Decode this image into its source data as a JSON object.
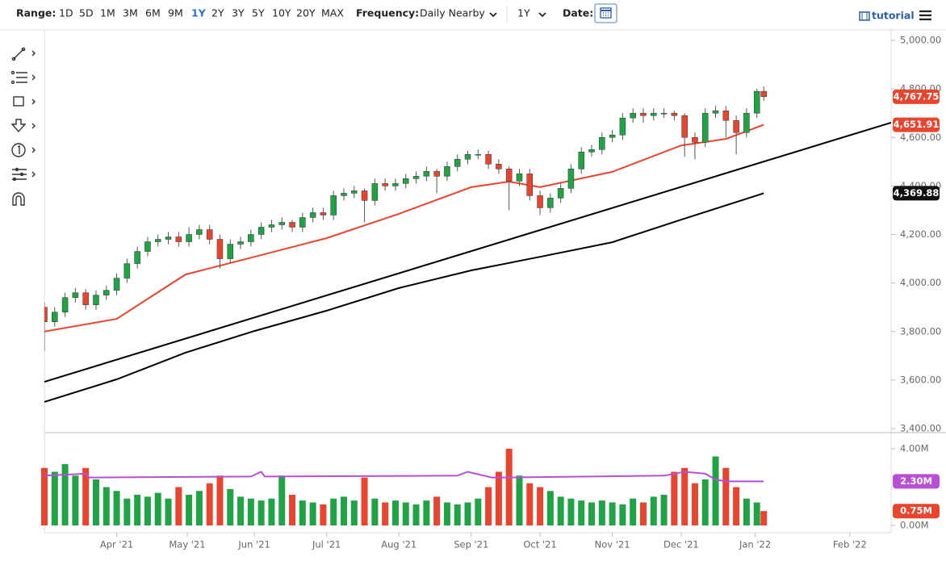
{
  "toolbar": {
    "range_label": "Range:",
    "ranges": [
      "1D",
      "5D",
      "1M",
      "3M",
      "6M",
      "9M",
      "1Y",
      "2Y",
      "3Y",
      "5Y",
      "10Y",
      "20Y",
      "MAX"
    ],
    "frequency_label": "Frequency:",
    "frequency": "Daily Nearby",
    "period": "1Y",
    "date_label": "Date:",
    "tutorial": "tutorial"
  },
  "chart_data": {
    "type": "candlestick",
    "xlim": [
      0,
      246
    ],
    "xticks": [
      {
        "value": 21,
        "label": "Apr '21"
      },
      {
        "value": 41.5,
        "label": "May '21"
      },
      {
        "value": 61,
        "label": "Jun '21"
      },
      {
        "value": 82,
        "label": "Jul '21"
      },
      {
        "value": 103,
        "label": "Aug '21"
      },
      {
        "value": 124,
        "label": "Sep '21"
      },
      {
        "value": 144,
        "label": "Oct '21"
      },
      {
        "value": 165,
        "label": "Nov '21"
      },
      {
        "value": 185,
        "label": "Dec '21"
      },
      {
        "value": 206.5,
        "label": "Jan '22"
      },
      {
        "value": 234,
        "label": "Feb '22"
      }
    ],
    "ylim": [
      3400,
      5000
    ],
    "yticks": [
      {
        "value": 3400,
        "label": "3,400.00"
      },
      {
        "value": 3600,
        "label": "3,600.00"
      },
      {
        "value": 3800,
        "label": "3,800.00"
      },
      {
        "value": 4000,
        "label": "4,000.00"
      },
      {
        "value": 4200,
        "label": "4,200.00"
      },
      {
        "value": 4400,
        "label": "4,400.00"
      },
      {
        "value": 4600,
        "label": "4,600.00"
      },
      {
        "value": 4800,
        "label": "4,800.00"
      },
      {
        "value": 5000,
        "label": "5,000.00"
      }
    ],
    "up_color": "#1fa344",
    "down_color": "#e8442e",
    "x": [
      0,
      3,
      6,
      9,
      12,
      15,
      18,
      21,
      24,
      27,
      30,
      33,
      36,
      39,
      42,
      45,
      48,
      51,
      54,
      57,
      60,
      63,
      66,
      69,
      72,
      75,
      78,
      81,
      84,
      87,
      90,
      93,
      96,
      99,
      102,
      105,
      108,
      111,
      114,
      117,
      120,
      123,
      126,
      129,
      132,
      135,
      138,
      141,
      144,
      147,
      150,
      153,
      156,
      159,
      162,
      165,
      168,
      171,
      174,
      177,
      180,
      183,
      186,
      189,
      192,
      195,
      198,
      201,
      204,
      207,
      209
    ],
    "candles": [
      [
        3900,
        3920,
        3720,
        3840
      ],
      [
        3840,
        3900,
        3820,
        3880
      ],
      [
        3880,
        3960,
        3860,
        3940
      ],
      [
        3940,
        3980,
        3920,
        3960
      ],
      [
        3960,
        3975,
        3890,
        3910
      ],
      [
        3910,
        3970,
        3890,
        3950
      ],
      [
        3950,
        3990,
        3930,
        3970
      ],
      [
        3970,
        4040,
        3950,
        4020
      ],
      [
        4020,
        4100,
        4000,
        4080
      ],
      [
        4080,
        4150,
        4060,
        4130
      ],
      [
        4130,
        4190,
        4110,
        4170
      ],
      [
        4170,
        4200,
        4150,
        4180
      ],
      [
        4180,
        4210,
        4160,
        4190
      ],
      [
        4190,
        4210,
        4150,
        4170
      ],
      [
        4170,
        4230,
        4150,
        4200
      ],
      [
        4200,
        4240,
        4180,
        4220
      ],
      [
        4220,
        4240,
        4160,
        4180
      ],
      [
        4180,
        4200,
        4060,
        4100
      ],
      [
        4100,
        4180,
        4080,
        4160
      ],
      [
        4160,
        4190,
        4140,
        4170
      ],
      [
        4170,
        4220,
        4150,
        4200
      ],
      [
        4200,
        4250,
        4180,
        4230
      ],
      [
        4230,
        4260,
        4210,
        4240
      ],
      [
        4240,
        4270,
        4220,
        4250
      ],
      [
        4250,
        4260,
        4210,
        4230
      ],
      [
        4230,
        4290,
        4210,
        4270
      ],
      [
        4270,
        4310,
        4250,
        4290
      ],
      [
        4290,
        4310,
        4260,
        4280
      ],
      [
        4280,
        4380,
        4260,
        4360
      ],
      [
        4360,
        4390,
        4340,
        4370
      ],
      [
        4370,
        4400,
        4350,
        4380
      ],
      [
        4380,
        4390,
        4250,
        4340
      ],
      [
        4340,
        4430,
        4320,
        4410
      ],
      [
        4410,
        4430,
        4380,
        4400
      ],
      [
        4400,
        4430,
        4380,
        4410
      ],
      [
        4410,
        4450,
        4390,
        4430
      ],
      [
        4430,
        4460,
        4410,
        4440
      ],
      [
        4440,
        4480,
        4420,
        4460
      ],
      [
        4460,
        4470,
        4370,
        4440
      ],
      [
        4440,
        4500,
        4420,
        4480
      ],
      [
        4480,
        4530,
        4460,
        4510
      ],
      [
        4510,
        4545,
        4490,
        4530
      ],
      [
        4530,
        4550,
        4510,
        4530
      ],
      [
        4530,
        4545,
        4470,
        4490
      ],
      [
        4490,
        4510,
        4450,
        4470
      ],
      [
        4470,
        4480,
        4300,
        4420
      ],
      [
        4420,
        4470,
        4400,
        4450
      ],
      [
        4450,
        4470,
        4340,
        4360
      ],
      [
        4360,
        4380,
        4280,
        4310
      ],
      [
        4310,
        4370,
        4290,
        4350
      ],
      [
        4350,
        4410,
        4330,
        4390
      ],
      [
        4390,
        4490,
        4370,
        4470
      ],
      [
        4470,
        4560,
        4450,
        4540
      ],
      [
        4540,
        4570,
        4520,
        4550
      ],
      [
        4550,
        4620,
        4530,
        4600
      ],
      [
        4600,
        4630,
        4580,
        4610
      ],
      [
        4610,
        4700,
        4590,
        4680
      ],
      [
        4680,
        4720,
        4660,
        4700
      ],
      [
        4700,
        4720,
        4660,
        4690
      ],
      [
        4690,
        4720,
        4670,
        4700
      ],
      [
        4700,
        4720,
        4680,
        4700
      ],
      [
        4700,
        4710,
        4670,
        4690
      ],
      [
        4690,
        4700,
        4520,
        4600
      ],
      [
        4600,
        4620,
        4510,
        4580
      ],
      [
        4580,
        4720,
        4560,
        4700
      ],
      [
        4700,
        4730,
        4680,
        4710
      ],
      [
        4710,
        4730,
        4600,
        4670
      ],
      [
        4670,
        4690,
        4530,
        4620
      ],
      [
        4620,
        4720,
        4600,
        4700
      ],
      [
        4700,
        4800,
        4680,
        4790
      ],
      [
        4790,
        4810,
        4750,
        4767.75
      ]
    ],
    "last_label": "4,767.75",
    "lines": [
      {
        "color": "#e8442e",
        "x": [
          0,
          21,
          41,
          61,
          82,
          103,
          124,
          135,
          144,
          165,
          185,
          198,
          209
        ],
        "values": [
          3800,
          3852,
          4035,
          4108,
          4185,
          4285,
          4395,
          4418,
          4395,
          4458,
          4567,
          4594,
          4651.91
        ],
        "last_label": "4,651.91"
      },
      {
        "color": "#000000",
        "x": [
          0,
          246
        ],
        "values": [
          3593,
          4661
        ]
      },
      {
        "color": "#000000",
        "x": [
          0,
          21,
          41,
          61,
          82,
          103,
          124,
          144,
          165,
          185,
          209
        ],
        "values": [
          3510,
          3603,
          3713,
          3802,
          3886,
          3979,
          4052,
          4108,
          4168,
          4261,
          4369.88
        ],
        "last_label": "4,369.88"
      }
    ],
    "volume": {
      "ylim": [
        0,
        4
      ],
      "yticks": [
        {
          "value": 0,
          "label": "0.00M"
        },
        {
          "value": 4,
          "label": "4.00M"
        }
      ],
      "values": [
        3.0,
        2.8,
        3.2,
        2.6,
        3.0,
        2.4,
        2.0,
        1.8,
        1.4,
        1.6,
        1.5,
        1.7,
        1.4,
        2.0,
        1.6,
        1.8,
        2.2,
        2.6,
        1.9,
        1.5,
        1.4,
        1.3,
        1.4,
        2.6,
        1.6,
        1.3,
        1.2,
        1.1,
        1.4,
        1.5,
        1.3,
        2.5,
        1.4,
        1.2,
        1.3,
        1.2,
        1.1,
        1.3,
        1.5,
        1.2,
        1.1,
        1.2,
        1.4,
        2.0,
        2.8,
        4.0,
        2.6,
        2.2,
        2.0,
        1.8,
        1.5,
        1.4,
        1.3,
        1.2,
        1.3,
        1.2,
        1.1,
        1.4,
        1.2,
        1.5,
        1.6,
        2.8,
        3.0,
        2.2,
        2.4,
        3.6,
        3.0,
        2.0,
        1.4,
        1.2,
        0.75
      ],
      "last_label": "0.75M",
      "average": {
        "color": "#b84fd6",
        "x": [
          0,
          12,
          13,
          60,
          63,
          64,
          120,
          123,
          130,
          135,
          180,
          186,
          192,
          195,
          198,
          209
        ],
        "values": [
          2.6,
          2.7,
          2.5,
          2.55,
          2.8,
          2.55,
          2.6,
          2.8,
          2.5,
          2.5,
          2.6,
          2.8,
          2.7,
          2.4,
          2.3,
          2.3
        ],
        "last_label": "2.30M"
      }
    }
  }
}
